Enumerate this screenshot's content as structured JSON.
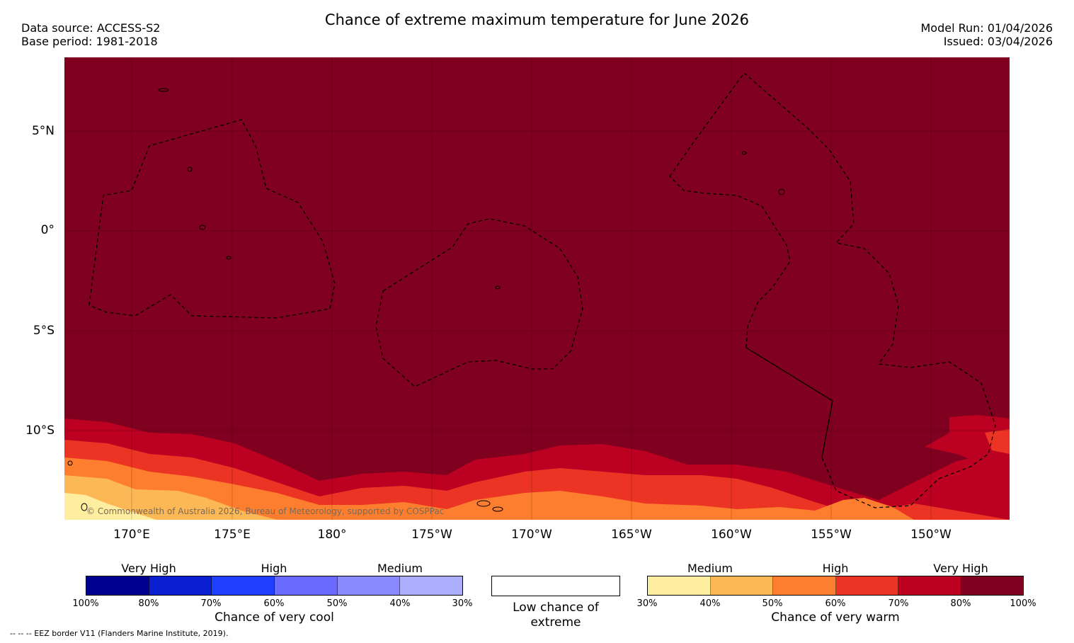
{
  "header": {
    "title": "Chance of extreme maximum temperature for June 2026",
    "data_source": "Data source: ACCESS-S2",
    "base_period": "Base period: 1981-2018",
    "model_run": "Model Run: 01/04/2026",
    "issued": "Issued: 03/04/2026"
  },
  "map": {
    "latitude_labels": [
      "5°N",
      "0°",
      "5°S",
      "10°S"
    ],
    "longitude_labels": [
      "170°E",
      "175°E",
      "180°",
      "175°W",
      "170°W",
      "165°W",
      "160°W",
      "155°W",
      "150°W"
    ],
    "copyright": "© Commonwealth of Australia 2026, Bureau of Meteorology, supported by COSPPac"
  },
  "legend": {
    "cool": {
      "headings": [
        "Very High",
        "High",
        "Medium"
      ],
      "ticks": [
        "100%",
        "80%",
        "70%",
        "60%",
        "50%",
        "40%",
        "30%"
      ],
      "colors": [
        "#00008f",
        "#0a20d0",
        "#2040ff",
        "#6a6aff",
        "#8a8aff",
        "#aeaeff"
      ],
      "caption": "Chance of very cool"
    },
    "low": {
      "caption": "Low chance of extreme"
    },
    "warm": {
      "headings": [
        "Medium",
        "High",
        "Very High"
      ],
      "ticks": [
        "30%",
        "40%",
        "50%",
        "60%",
        "70%",
        "80%",
        "100%"
      ],
      "colors": [
        "#ffeea0",
        "#fdb856",
        "#fd7e2e",
        "#ec3424",
        "#bb0021",
        "#800020"
      ],
      "caption": "Chance of very warm"
    }
  },
  "footnote": "--  --  -- EEZ border V11 (Flanders Marine Institute, 2019)."
}
